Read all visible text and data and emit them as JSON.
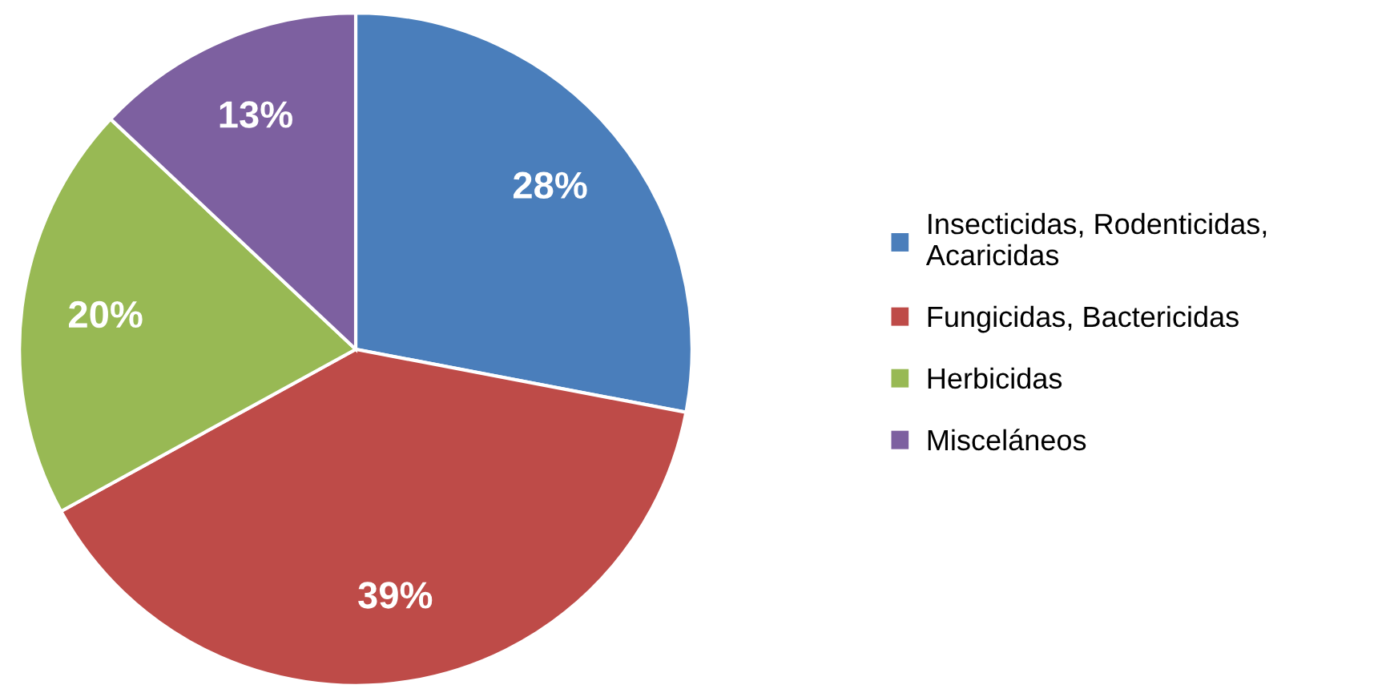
{
  "chart_data": {
    "type": "pie",
    "categories": [
      "Insecticidas, Rodenticidas,\nAcaricidas",
      "Fungicidas, Bactericidas",
      "Herbicidas",
      "Misceláneos"
    ],
    "values": [
      28,
      39,
      20,
      13
    ],
    "colors": [
      "#4a7ebb",
      "#be4b48",
      "#98b954",
      "#7d60a0"
    ],
    "value_labels": [
      "28%",
      "39%",
      "20%",
      "13%"
    ],
    "legend": "right"
  }
}
